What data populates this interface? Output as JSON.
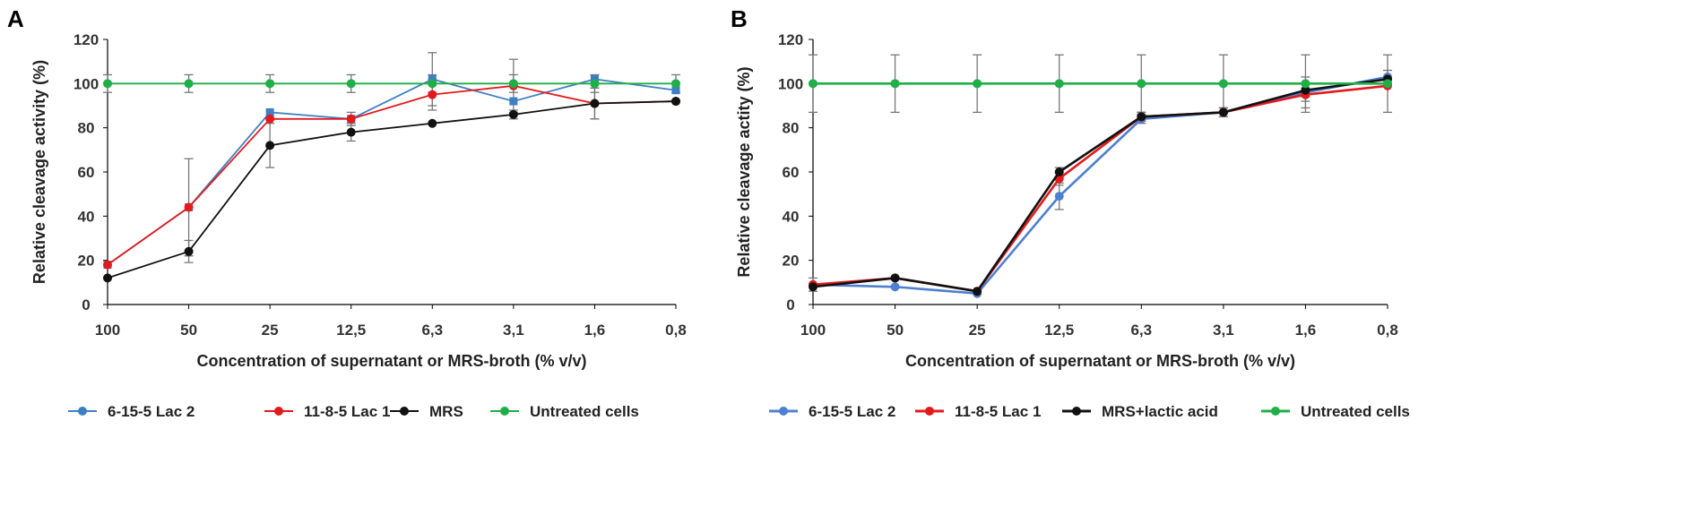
{
  "chart_data": [
    {
      "type": "line",
      "panel": "A",
      "title": "",
      "xlabel": "Concentration of supernatant or MRS-broth (% v/v)",
      "ylabel": "Relative cleavage activity (%)",
      "categories": [
        "100",
        "50",
        "25",
        "12,5",
        "6,3",
        "3,1",
        "1,6",
        "0,8"
      ],
      "ylim": [
        0,
        120
      ],
      "yticks": [
        0,
        20,
        40,
        60,
        80,
        100,
        120
      ],
      "grid": false,
      "legend_position": "bottom",
      "series": [
        {
          "name": "6-15-5 Lac 2",
          "color": "#3d7fc4",
          "marker": "square",
          "values": [
            18,
            44,
            87,
            84,
            102,
            92,
            102,
            97
          ],
          "errors": [
            0,
            0,
            0,
            0,
            12,
            0,
            0,
            0
          ]
        },
        {
          "name": "11-8-5 Lac 1",
          "color": "#e31a1c",
          "marker": "circle",
          "values": [
            18,
            44,
            84,
            84,
            95,
            99,
            91,
            92
          ],
          "errors": [
            0,
            22,
            0,
            3,
            7,
            12,
            7,
            0
          ]
        },
        {
          "name": "MRS",
          "color": "#111111",
          "marker": "circle",
          "values": [
            12,
            24,
            72,
            78,
            82,
            86,
            91,
            92
          ],
          "errors": [
            0,
            5,
            10,
            4,
            0,
            2,
            7,
            0
          ]
        },
        {
          "name": "Untreated cells",
          "color": "#1fae47",
          "marker": "circle",
          "values": [
            100,
            100,
            100,
            100,
            100,
            100,
            100,
            100
          ],
          "errors": [
            4,
            4,
            4,
            4,
            4,
            4,
            4,
            4
          ]
        }
      ]
    },
    {
      "type": "line",
      "panel": "B",
      "title": "",
      "xlabel": "Concentration of supernatant or MRS-broth (% v/v)",
      "ylabel": "Relative cleavage actity (%)",
      "categories": [
        "100",
        "50",
        "25",
        "12,5",
        "6,3",
        "3,1",
        "1,6",
        "0,8"
      ],
      "ylim": [
        0,
        120
      ],
      "yticks": [
        0,
        20,
        40,
        60,
        80,
        100,
        120
      ],
      "grid": false,
      "legend_position": "bottom",
      "series": [
        {
          "name": "6-15-5 Lac 2",
          "color": "#4f7fd0",
          "marker": "circle",
          "values": [
            9,
            8,
            5,
            49,
            84,
            87,
            96,
            103
          ],
          "errors": [
            3,
            0,
            0,
            6,
            2,
            2,
            7,
            3
          ]
        },
        {
          "name": "11-8-5 Lac 1",
          "color": "#e31a1c",
          "marker": "circle",
          "values": [
            9,
            12,
            6,
            57,
            85,
            87,
            95,
            99
          ],
          "errors": [
            0,
            0,
            0,
            3,
            2,
            2,
            3,
            0
          ]
        },
        {
          "name": "MRS+lactic acid",
          "color": "#111111",
          "marker": "circle",
          "values": [
            8,
            12,
            6,
            60,
            85,
            87,
            97,
            102
          ],
          "errors": [
            0,
            0,
            0,
            2,
            2,
            2,
            3,
            0
          ]
        },
        {
          "name": "Untreated cells",
          "color": "#1fae47",
          "marker": "circle",
          "values": [
            100,
            100,
            100,
            100,
            100,
            100,
            100,
            100
          ],
          "errors": [
            13,
            13,
            13,
            13,
            13,
            13,
            13,
            13
          ]
        }
      ]
    }
  ]
}
